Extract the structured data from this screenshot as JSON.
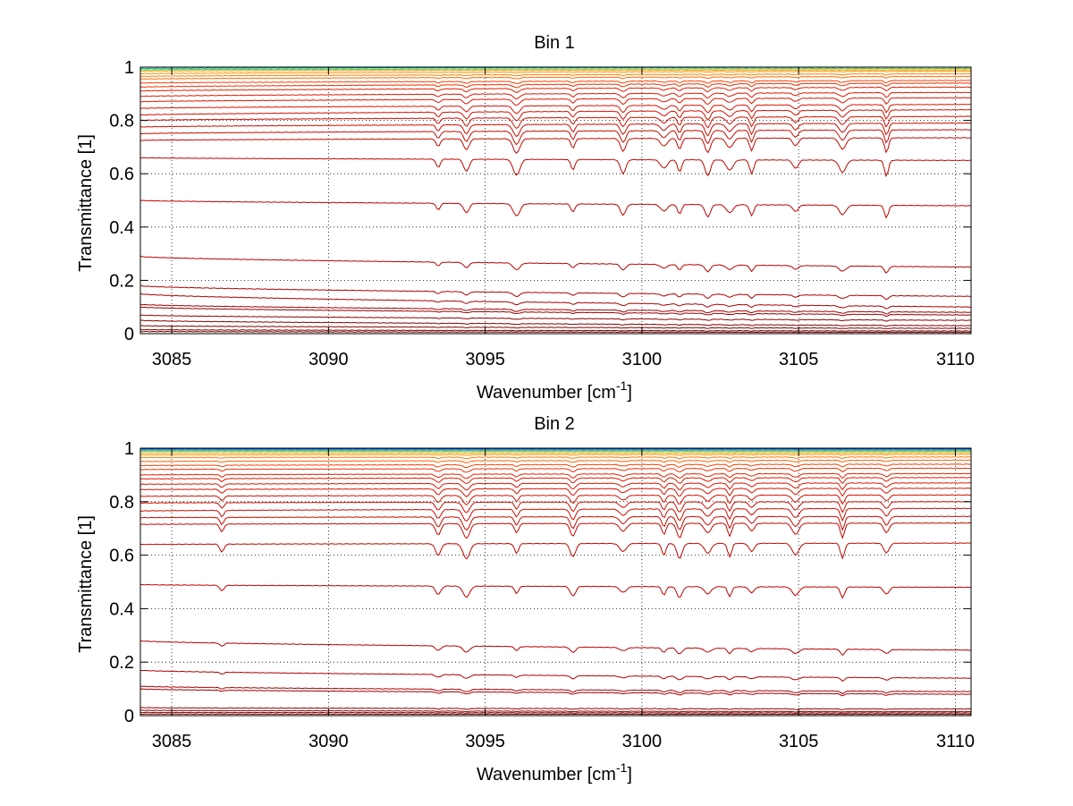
{
  "chart_data": [
    {
      "type": "line",
      "title": "Bin 1",
      "xlabel": "Wavenumber [cm",
      "xlabel_superscript": "-1",
      "xlabel_suffix": "]",
      "ylabel": "Transmittance [1]",
      "xlim": [
        3084,
        3110.5
      ],
      "ylim": [
        0,
        1
      ],
      "xticks": [
        3085,
        3090,
        3095,
        3100,
        3105,
        3110
      ],
      "xtick_labels": [
        "3085",
        "3090",
        "3095",
        "3100",
        "3105",
        "3110"
      ],
      "yticks": [
        0,
        0.2,
        0.4,
        0.6,
        0.8,
        1
      ],
      "ytick_labels": [
        "0",
        "0.2",
        "0.4",
        "0.6",
        "0.8",
        "1"
      ],
      "grid": true,
      "legend": "none",
      "absorption_lines_cm1": [
        3093.5,
        3094.4,
        3096.0,
        3097.8,
        3099.4,
        3100.7,
        3101.2,
        3102.1,
        3102.8,
        3103.5,
        3104.9,
        3106.4,
        3107.8
      ],
      "series": [
        {
          "start": 0.995,
          "end": 1.0,
          "color": "#00b0b8",
          "depth": 0.0
        },
        {
          "start": 0.99,
          "end": 0.995,
          "color": "#4fc030",
          "depth": 0.0
        },
        {
          "start": 0.985,
          "end": 0.99,
          "color": "#f0a000",
          "depth": 0.001
        },
        {
          "start": 0.975,
          "end": 0.985,
          "color": "#ff9000",
          "depth": 0.002
        },
        {
          "start": 0.965,
          "end": 0.975,
          "color": "#ff8000",
          "depth": 0.004
        },
        {
          "start": 0.955,
          "end": 0.965,
          "color": "#ff6a00",
          "depth": 0.005
        },
        {
          "start": 0.94,
          "end": 0.95,
          "color": "#ff4000",
          "depth": 0.008
        },
        {
          "start": 0.925,
          "end": 0.94,
          "color": "#f03000",
          "depth": 0.011
        },
        {
          "start": 0.91,
          "end": 0.925,
          "color": "#e02000",
          "depth": 0.014
        },
        {
          "start": 0.89,
          "end": 0.905,
          "color": "#e01800",
          "depth": 0.018
        },
        {
          "start": 0.87,
          "end": 0.885,
          "color": "#dd1500",
          "depth": 0.022
        },
        {
          "start": 0.845,
          "end": 0.86,
          "color": "#d91200",
          "depth": 0.028
        },
        {
          "start": 0.82,
          "end": 0.84,
          "color": "#d41000",
          "depth": 0.033
        },
        {
          "start": 0.8,
          "end": 0.815,
          "color": "#d00e00",
          "depth": 0.038
        },
        {
          "start": 0.775,
          "end": 0.79,
          "color": "#cc0c00",
          "depth": 0.043
        },
        {
          "start": 0.75,
          "end": 0.765,
          "color": "#c80a00",
          "depth": 0.048
        },
        {
          "start": 0.725,
          "end": 0.735,
          "color": "#c40800",
          "depth": 0.053
        },
        {
          "start": 0.66,
          "end": 0.65,
          "color": "#c00600",
          "depth": 0.058
        },
        {
          "start": 0.5,
          "end": 0.48,
          "color": "#c00000",
          "depth": 0.045
        },
        {
          "start": 0.29,
          "end": 0.25,
          "color": "#b80000",
          "depth": 0.025
        },
        {
          "start": 0.18,
          "end": 0.14,
          "color": "#b00000",
          "depth": 0.015
        },
        {
          "start": 0.15,
          "end": 0.1,
          "color": "#a80000",
          "depth": 0.01
        },
        {
          "start": 0.11,
          "end": 0.08,
          "color": "#a00000",
          "depth": 0.008
        },
        {
          "start": 0.1,
          "end": 0.07,
          "color": "#980000",
          "depth": 0.006
        },
        {
          "start": 0.07,
          "end": 0.05,
          "color": "#900000",
          "depth": 0.004
        },
        {
          "start": 0.05,
          "end": 0.03,
          "color": "#880000",
          "depth": 0.003
        },
        {
          "start": 0.03,
          "end": 0.02,
          "color": "#800000",
          "depth": 0.002
        },
        {
          "start": 0.015,
          "end": 0.01,
          "color": "#780000",
          "depth": 0.001
        },
        {
          "start": 0.008,
          "end": 0.005,
          "color": "#700000",
          "depth": 0.0
        }
      ]
    },
    {
      "type": "line",
      "title": "Bin 2",
      "xlabel": "Wavenumber [cm",
      "xlabel_superscript": "-1",
      "xlabel_suffix": "]",
      "ylabel": "Transmittance [1]",
      "xlim": [
        3084,
        3110.5
      ],
      "ylim": [
        0,
        1
      ],
      "xticks": [
        3085,
        3090,
        3095,
        3100,
        3105,
        3110
      ],
      "xtick_labels": [
        "3085",
        "3090",
        "3095",
        "3100",
        "3105",
        "3110"
      ],
      "yticks": [
        0,
        0.2,
        0.4,
        0.6,
        0.8,
        1
      ],
      "ytick_labels": [
        "0",
        "0.2",
        "0.4",
        "0.6",
        "0.8",
        "1"
      ],
      "grid": true,
      "legend": "none",
      "absorption_lines_cm1": [
        3086.6,
        3093.5,
        3094.4,
        3096.0,
        3097.8,
        3099.4,
        3100.7,
        3101.2,
        3102.1,
        3102.8,
        3103.5,
        3104.9,
        3106.4,
        3107.8
      ],
      "series": [
        {
          "start": 0.998,
          "end": 0.998,
          "color": "#1040c0",
          "depth": 0.0
        },
        {
          "start": 0.995,
          "end": 0.995,
          "color": "#2080d0",
          "depth": 0.0
        },
        {
          "start": 0.992,
          "end": 0.992,
          "color": "#30b0c0",
          "depth": 0.001
        },
        {
          "start": 0.988,
          "end": 0.988,
          "color": "#80c040",
          "depth": 0.001
        },
        {
          "start": 0.982,
          "end": 0.983,
          "color": "#e0b000",
          "depth": 0.002
        },
        {
          "start": 0.975,
          "end": 0.977,
          "color": "#ff9000",
          "depth": 0.003
        },
        {
          "start": 0.965,
          "end": 0.967,
          "color": "#ff7800",
          "depth": 0.005
        },
        {
          "start": 0.95,
          "end": 0.955,
          "color": "#ff6000",
          "depth": 0.007
        },
        {
          "start": 0.935,
          "end": 0.94,
          "color": "#f84000",
          "depth": 0.01
        },
        {
          "start": 0.92,
          "end": 0.925,
          "color": "#f03000",
          "depth": 0.013
        },
        {
          "start": 0.9,
          "end": 0.905,
          "color": "#e82000",
          "depth": 0.016
        },
        {
          "start": 0.885,
          "end": 0.89,
          "color": "#e01800",
          "depth": 0.02
        },
        {
          "start": 0.865,
          "end": 0.87,
          "color": "#dc1500",
          "depth": 0.024
        },
        {
          "start": 0.845,
          "end": 0.85,
          "color": "#d81200",
          "depth": 0.028
        },
        {
          "start": 0.82,
          "end": 0.825,
          "color": "#d41000",
          "depth": 0.033
        },
        {
          "start": 0.795,
          "end": 0.8,
          "color": "#d00e00",
          "depth": 0.038
        },
        {
          "start": 0.765,
          "end": 0.775,
          "color": "#cc0c00",
          "depth": 0.043
        },
        {
          "start": 0.74,
          "end": 0.745,
          "color": "#c80a00",
          "depth": 0.048
        },
        {
          "start": 0.715,
          "end": 0.72,
          "color": "#c40800",
          "depth": 0.053
        },
        {
          "start": 0.64,
          "end": 0.645,
          "color": "#c00600",
          "depth": 0.055
        },
        {
          "start": 0.49,
          "end": 0.48,
          "color": "#c00000",
          "depth": 0.04
        },
        {
          "start": 0.28,
          "end": 0.245,
          "color": "#b80000",
          "depth": 0.022
        },
        {
          "start": 0.17,
          "end": 0.14,
          "color": "#b00000",
          "depth": 0.013
        },
        {
          "start": 0.11,
          "end": 0.09,
          "color": "#a80000",
          "depth": 0.009
        },
        {
          "start": 0.1,
          "end": 0.08,
          "color": "#a00000",
          "depth": 0.007
        },
        {
          "start": 0.03,
          "end": 0.025,
          "color": "#900000",
          "depth": 0.003
        },
        {
          "start": 0.02,
          "end": 0.015,
          "color": "#880000",
          "depth": 0.002
        },
        {
          "start": 0.012,
          "end": 0.01,
          "color": "#800000",
          "depth": 0.001
        },
        {
          "start": 0.006,
          "end": 0.005,
          "color": "#700000",
          "depth": 0.0
        }
      ]
    }
  ]
}
